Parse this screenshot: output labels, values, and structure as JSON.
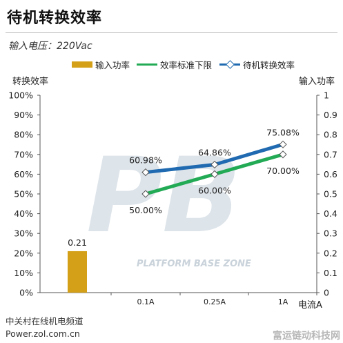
{
  "title": "待机转换效率",
  "subtitle": "输入电压：220Vac",
  "footer": {
    "line1": "中关村在线机电频道",
    "line2": "Power.zol.com.cn"
  },
  "watermark": {
    "text": "PLATFORM BASE ZONE",
    "corner_text": "富运链动科技网"
  },
  "colors": {
    "bar": "#d4a017",
    "limit_line": "#22aa55",
    "efficiency_line": "#1f6ab0",
    "watermark": "#dde4ea"
  },
  "chart_data": {
    "type": "bar",
    "title": "待机转换效率",
    "xlabel": "电流A",
    "ylabel_left": "转换效率",
    "ylabel_right": "输入功率",
    "categories": [
      "",
      "0.1A",
      "0.25A",
      "1A"
    ],
    "ylim_left": [
      0,
      100
    ],
    "left_ticks": [
      "0%",
      "10%",
      "20%",
      "30%",
      "40%",
      "50%",
      "60%",
      "70%",
      "80%",
      "90%",
      "100%"
    ],
    "ylim_right": [
      0,
      1
    ],
    "right_ticks": [
      "0",
      "0.1",
      "0.2",
      "0.3",
      "0.4",
      "0.5",
      "0.6",
      "0.7",
      "0.8",
      "0.9",
      "1"
    ],
    "grid": false,
    "legend_position": "top",
    "series": [
      {
        "name": "输入功率",
        "kind": "bar",
        "axis": "right",
        "values": [
          0.21,
          null,
          null,
          null
        ],
        "labels": [
          "0.21",
          null,
          null,
          null
        ]
      },
      {
        "name": "效率标准下限",
        "kind": "line",
        "axis": "left",
        "values": [
          null,
          50,
          60,
          70
        ],
        "labels": [
          null,
          "50.00%",
          "60.00%",
          "70.00%"
        ]
      },
      {
        "name": "待机转换效率",
        "kind": "line",
        "axis": "left",
        "values": [
          null,
          60.98,
          64.86,
          75.08
        ],
        "labels": [
          null,
          "60.98%",
          "64.86%",
          "75.08%"
        ]
      }
    ]
  }
}
